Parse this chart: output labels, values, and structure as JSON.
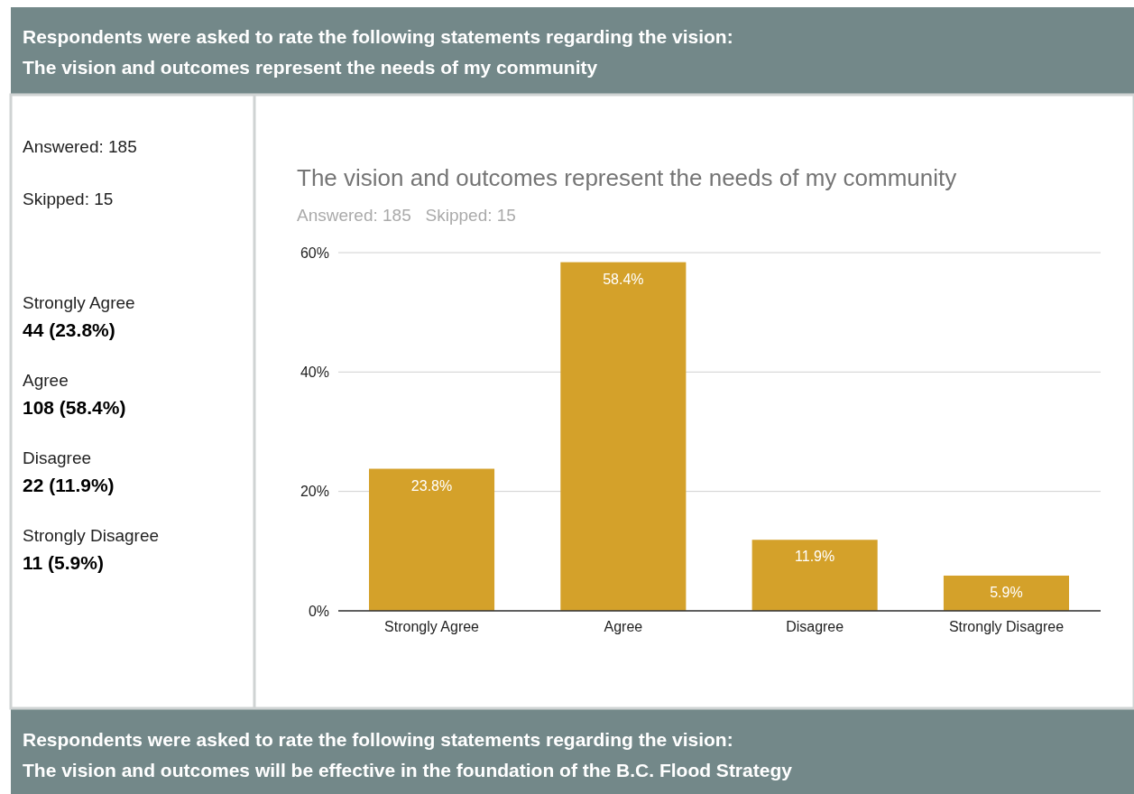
{
  "chart_data": {
    "type": "bar",
    "title": "The vision and outcomes represent the needs of my community",
    "subtitle": "Answered: 185   Skipped: 15",
    "categories": [
      "Strongly Agree",
      "Agree",
      "Disagree",
      "Strongly Disagree"
    ],
    "values": [
      23.8,
      58.4,
      11.9,
      5.9
    ],
    "value_labels": [
      "23.8%",
      "58.4%",
      "11.9%",
      "5.9%"
    ],
    "color": "#d4a12a",
    "ylim": [
      0,
      60
    ],
    "yticks": [
      {
        "value": 0,
        "label": "0%"
      },
      {
        "value": 20,
        "label": "20%"
      },
      {
        "value": 40,
        "label": "40%"
      },
      {
        "value": 60,
        "label": "60%"
      }
    ],
    "grid": "y",
    "annotations": [
      "Respondents were asked to rate the following statements regarding the vision:",
      "The vision and outcomes represent the needs of my community",
      "Answered: 185",
      "Skipped: 15",
      "Strongly Agree",
      "44 (23.8%)",
      "Agree",
      "108 (58.4%)",
      "Disagree",
      "22 (11.9%)",
      "Strongly Disagree",
      "11 (5.9%)",
      "Respondents were asked to rate the following statements regarding the vision:",
      "The vision and outcomes will be effective in the foundation of the B.C. Flood Strategy"
    ]
  }
}
